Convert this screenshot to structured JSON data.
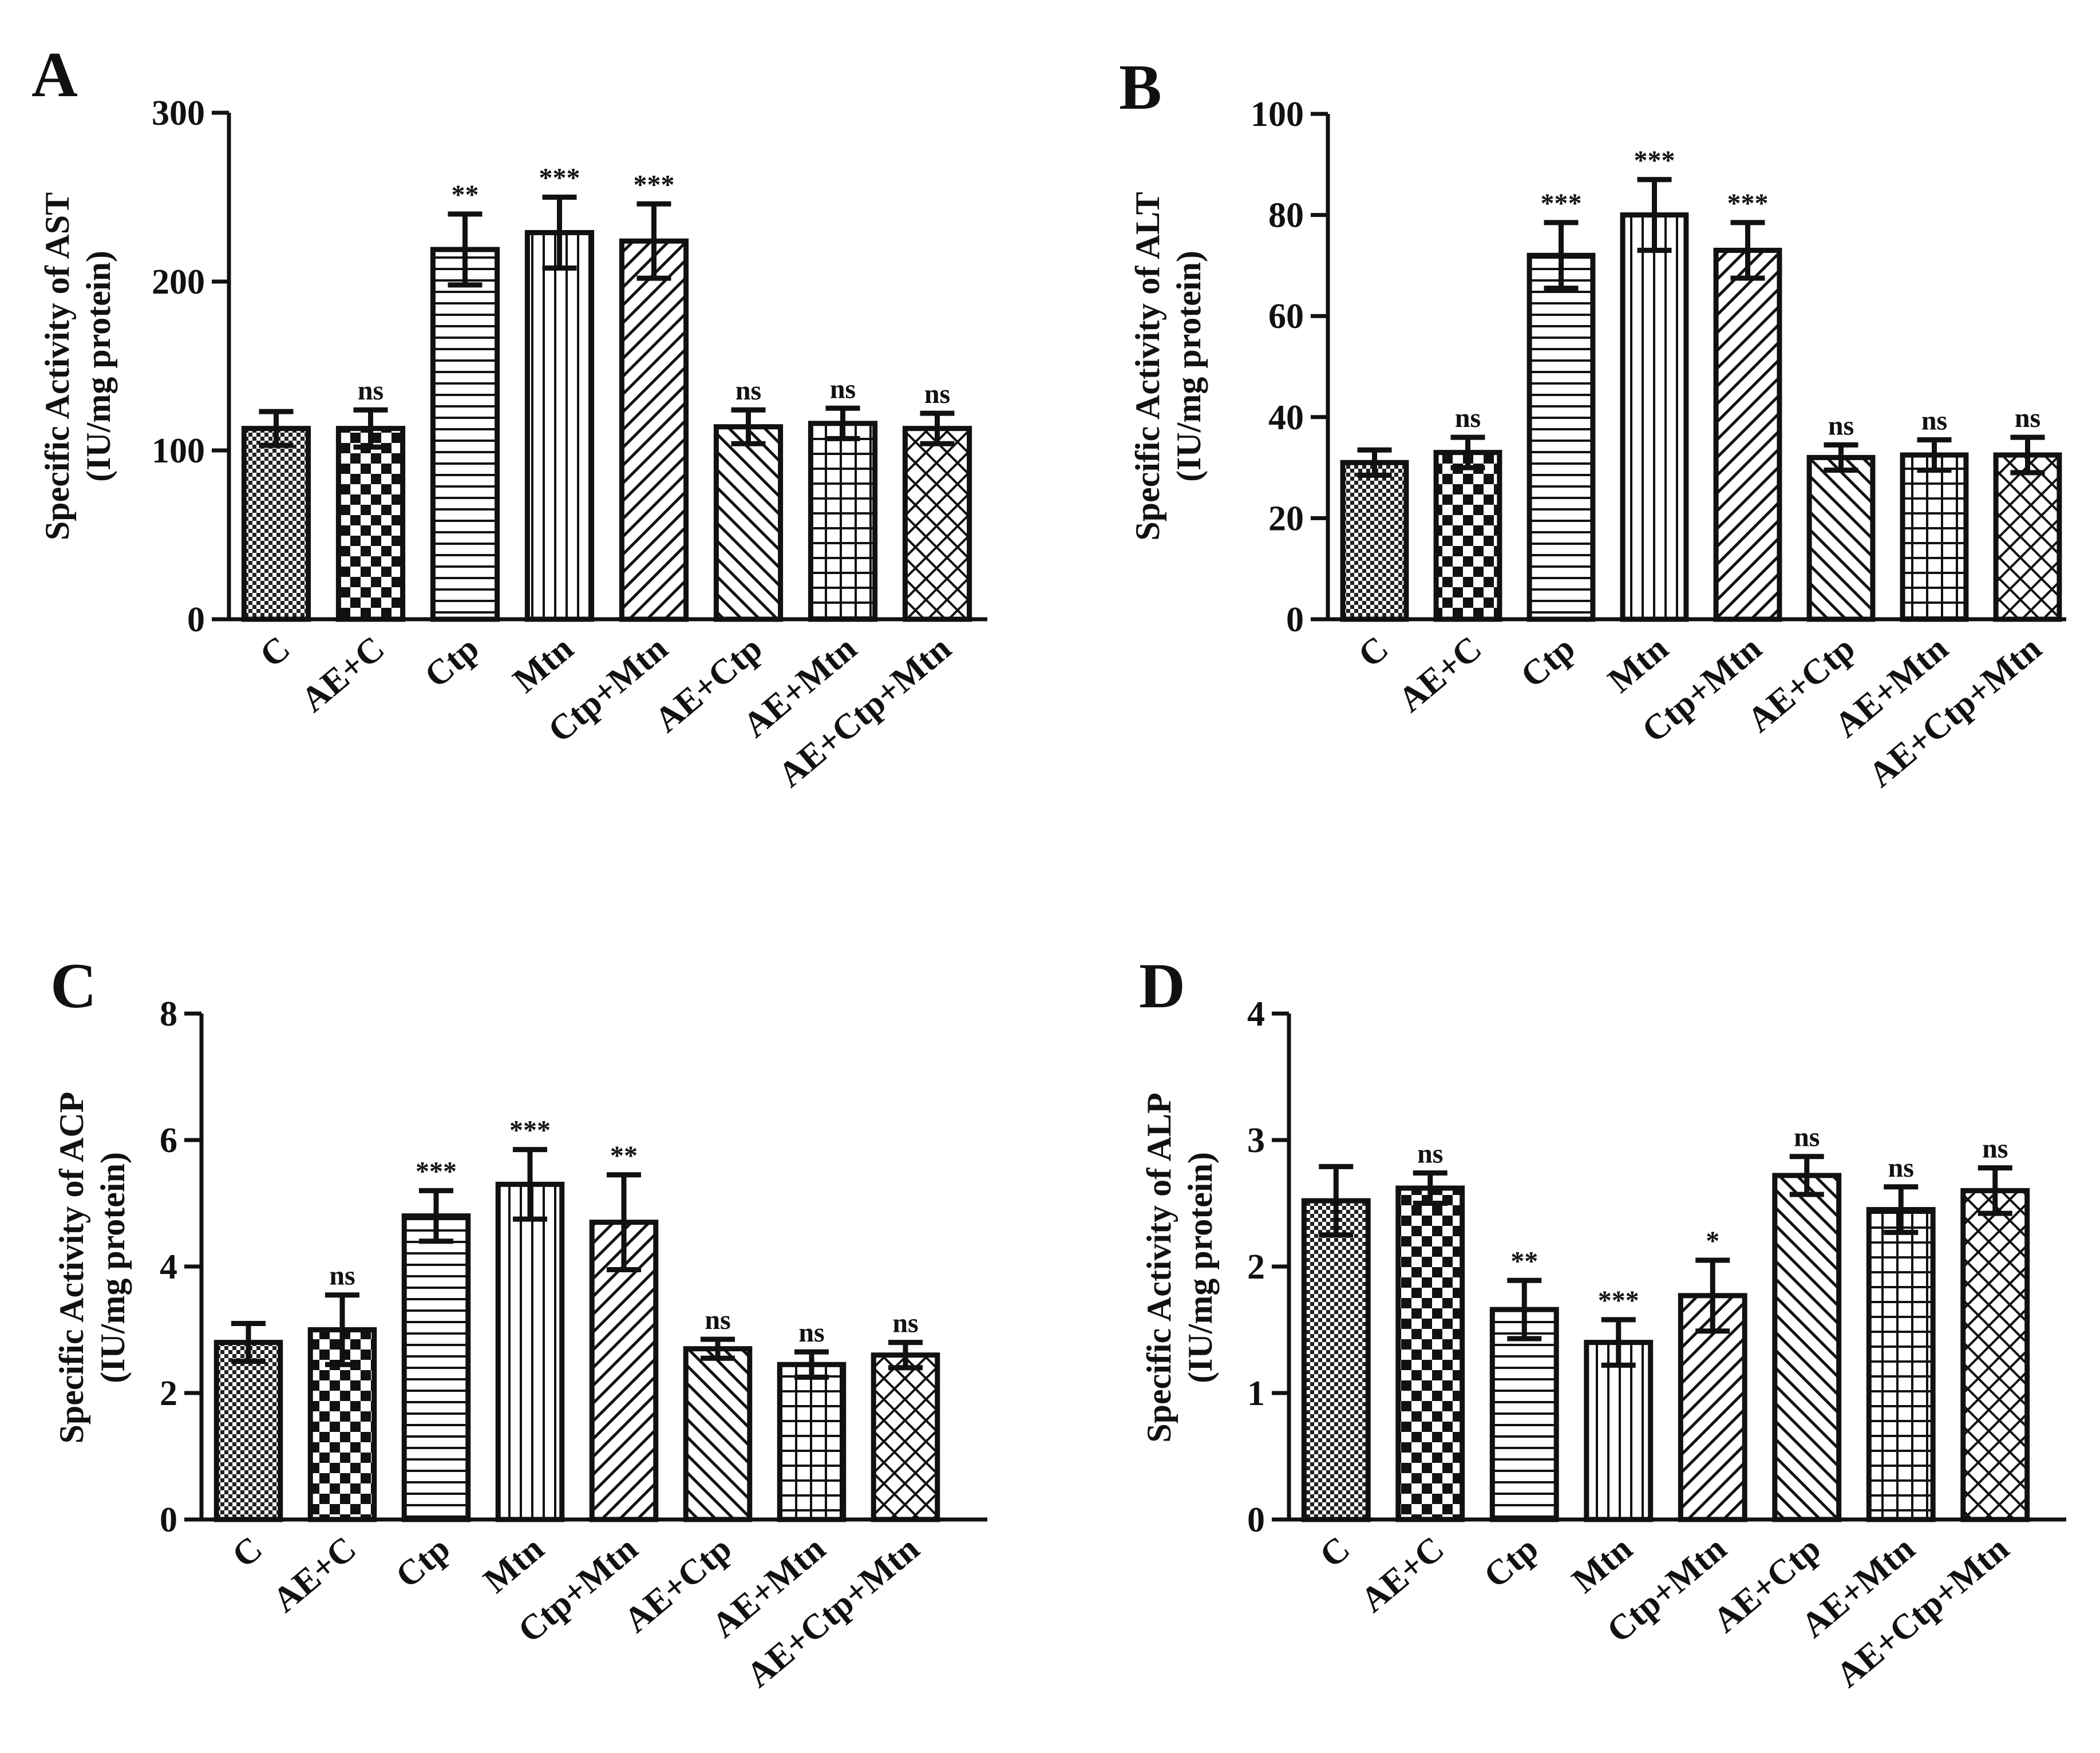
{
  "figure": {
    "ylabel_line2": "(IU/mg protein)"
  },
  "chart_data": [
    {
      "panel": "A",
      "type": "bar",
      "title": "",
      "ylabel": "Specific Activity of AST",
      "ylabel_unit": "(IU/mg protein)",
      "ylim": [
        0,
        300
      ],
      "yticks": [
        0,
        100,
        200,
        300
      ],
      "categories": [
        "C",
        "AE+C",
        "Ctp",
        "Mtn",
        "Ctp+Mtn",
        "AE+Ctp",
        "AE+Mtn",
        "AE+Ctp+Mtn"
      ],
      "values": [
        113,
        113,
        219,
        229,
        224,
        114,
        116,
        113
      ],
      "errors": [
        10,
        11,
        21,
        21,
        22,
        10,
        9,
        9
      ],
      "significance": [
        "",
        "ns",
        "**",
        "***",
        "***",
        "ns",
        "ns",
        "ns"
      ],
      "patterns": [
        "dots",
        "checker",
        "hlines",
        "vlines",
        "diagR",
        "diagL",
        "grid",
        "crosshatch"
      ]
    },
    {
      "panel": "B",
      "type": "bar",
      "title": "",
      "ylabel": "Specific Activity of ALT",
      "ylabel_unit": "(IU/mg protein)",
      "ylim": [
        0,
        100
      ],
      "yticks": [
        0,
        20,
        40,
        60,
        80,
        100
      ],
      "categories": [
        "C",
        "AE+C",
        "Ctp",
        "Mtn",
        "Ctp+Mtn",
        "AE+Ctp",
        "AE+Mtn",
        "AE+Ctp+Mtn"
      ],
      "values": [
        31,
        33,
        72,
        80,
        73,
        32,
        32.5,
        32.5
      ],
      "errors": [
        2.5,
        3,
        6.5,
        7,
        5.5,
        2.5,
        3,
        3.5
      ],
      "significance": [
        "",
        "ns",
        "***",
        "***",
        "***",
        "ns",
        "ns",
        "ns"
      ],
      "patterns": [
        "dots",
        "checker",
        "hlines",
        "vlines",
        "diagR",
        "diagL",
        "grid",
        "crosshatch"
      ]
    },
    {
      "panel": "C",
      "type": "bar",
      "title": "",
      "ylabel": "Specific Activity of ACP",
      "ylabel_unit": "(IU/mg protein)",
      "ylim": [
        0,
        8
      ],
      "yticks": [
        0,
        2,
        4,
        6,
        8
      ],
      "categories": [
        "C",
        "AE+C",
        "Ctp",
        "Mtn",
        "Ctp+Mtn",
        "AE+Ctp",
        "AE+Mtn",
        "AE+Ctp+Mtn"
      ],
      "values": [
        2.8,
        3.0,
        4.8,
        5.3,
        4.7,
        2.7,
        2.45,
        2.6
      ],
      "errors": [
        0.3,
        0.55,
        0.4,
        0.55,
        0.75,
        0.15,
        0.2,
        0.2
      ],
      "significance": [
        "",
        "ns",
        "***",
        "***",
        "**",
        "ns",
        "ns",
        "ns"
      ],
      "patterns": [
        "dots",
        "checker",
        "hlines",
        "vlines",
        "diagR",
        "diagL",
        "grid",
        "crosshatch"
      ]
    },
    {
      "panel": "D",
      "type": "bar",
      "title": "",
      "ylabel": "Specific Activity of ALP",
      "ylabel_unit": "(IU/mg protein)",
      "ylim": [
        0,
        4
      ],
      "yticks": [
        0,
        1,
        2,
        3,
        4
      ],
      "categories": [
        "C",
        "AE+C",
        "Ctp",
        "Mtn",
        "Ctp+Mtn",
        "AE+Ctp",
        "AE+Mtn",
        "AE+Ctp+Mtn"
      ],
      "values": [
        2.52,
        2.62,
        1.66,
        1.4,
        1.77,
        2.72,
        2.45,
        2.6
      ],
      "errors": [
        0.27,
        0.12,
        0.23,
        0.18,
        0.28,
        0.15,
        0.18,
        0.18
      ],
      "significance": [
        "",
        "ns",
        "**",
        "***",
        "*",
        "ns",
        "ns",
        "ns"
      ],
      "patterns": [
        "dots",
        "checker",
        "hlines",
        "vlines",
        "diagR",
        "diagL",
        "grid",
        "crosshatch"
      ]
    }
  ]
}
